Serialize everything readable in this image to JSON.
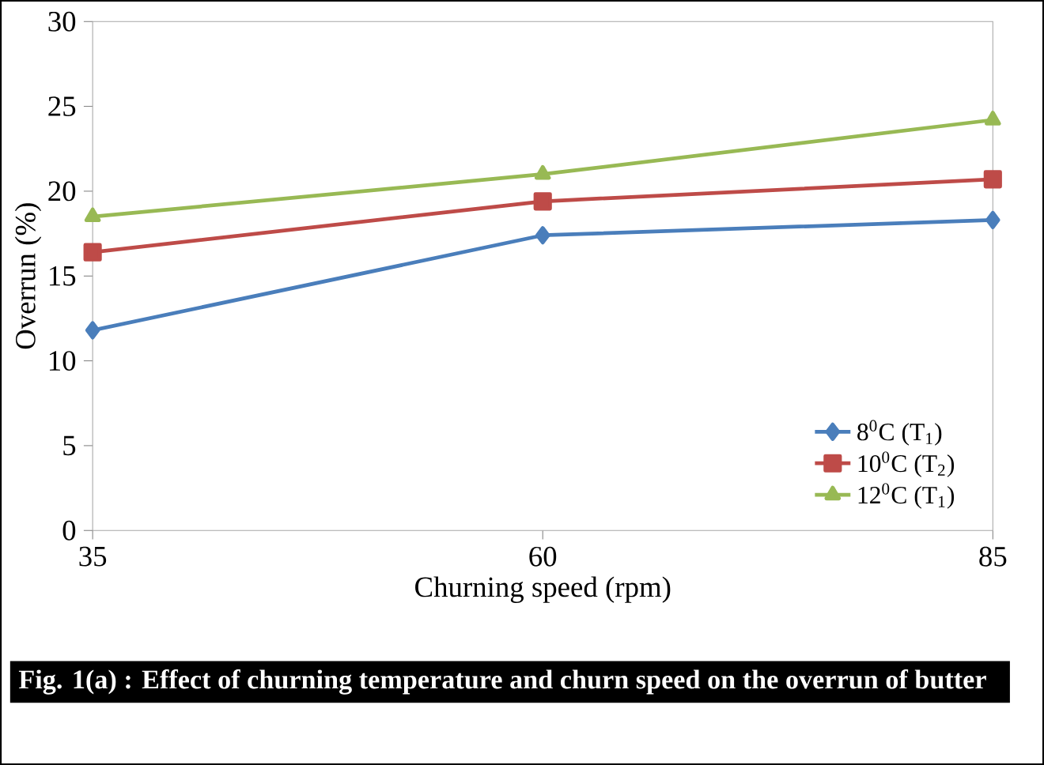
{
  "chart_data": {
    "type": "line",
    "xlabel": "Churning speed (rpm)",
    "ylabel": "Overrun (%)",
    "x": [
      35,
      60,
      85
    ],
    "xlim": [
      35,
      85
    ],
    "xticks": [
      35,
      60,
      85
    ],
    "ylim": [
      0,
      30
    ],
    "yticks": [
      0,
      5,
      10,
      15,
      20,
      25,
      30
    ],
    "series": [
      {
        "name": "8$^{0}$C (T$_{1}$)",
        "color": "#4a7ebb",
        "marker": "diamond",
        "values": [
          11.8,
          17.4,
          18.3
        ]
      },
      {
        "name": "10$^{0}$C (T$_{2}$)",
        "color": "#be4b48",
        "marker": "square",
        "values": [
          16.4,
          19.4,
          20.7
        ]
      },
      {
        "name": "12$^{0}$C (T$_{1}$)",
        "color": "#98b954",
        "marker": "triangle",
        "values": [
          18.5,
          21.0,
          24.2
        ]
      }
    ],
    "grid": false,
    "legend": "bottom right",
    "line_style": "solid",
    "annotations": [
      "Fig. 1(a) :  Effect of churning temperature and churn speed on the overrun of  butter"
    ]
  }
}
